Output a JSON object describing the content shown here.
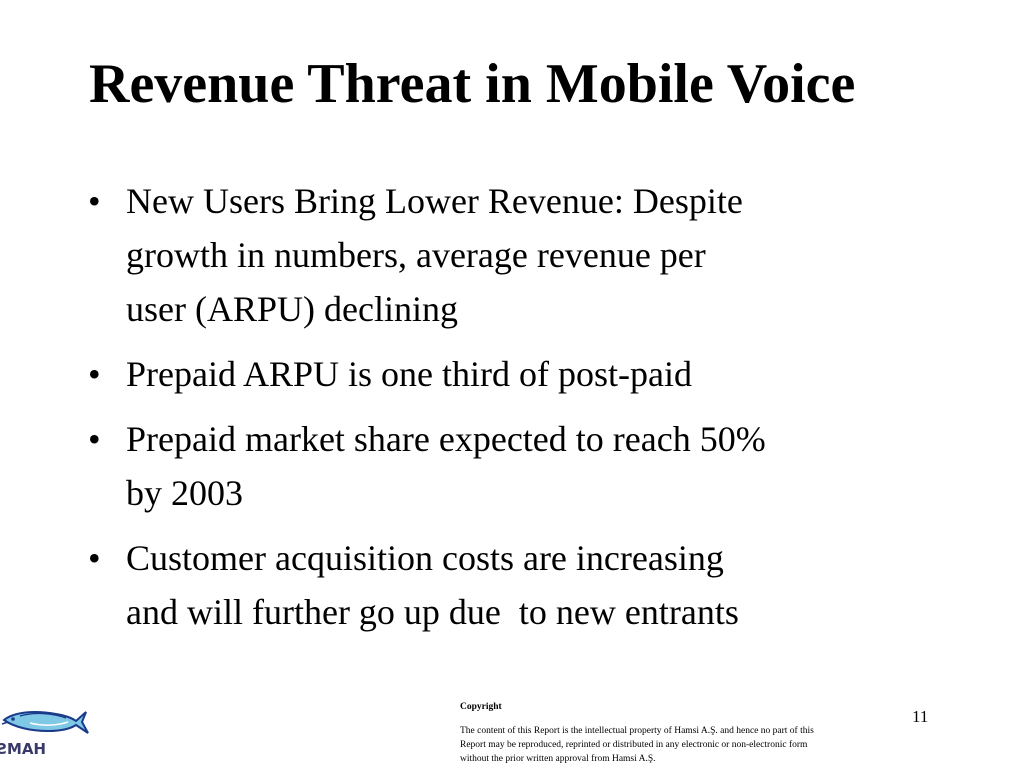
{
  "slide": {
    "title": "Revenue Threat in Mobile Voice",
    "bullets": [
      {
        "lines": [
          "New Users Bring Lower Revenue: Despite",
          "growth in numbers, average revenue per",
          "user (ARPU) declining"
        ]
      },
      {
        "lines": [
          "Prepaid ARPU is one third of post-paid"
        ]
      },
      {
        "lines": [
          "Prepaid market share expected to reach 50%",
          "by 2003"
        ]
      },
      {
        "lines": [
          "Customer acquisition costs are increasing",
          "and will further go up due  to new entrants"
        ]
      }
    ],
    "bullet_symbol": "•",
    "page_number": "11"
  },
  "footer": {
    "logo": {
      "icon": "fish-logo-icon",
      "text": "HAMSI",
      "colors": {
        "fish_body": "#7fc8e6",
        "fish_outline": "#1a3a8a",
        "text": "#3a3a6a"
      }
    },
    "copyright": {
      "title": "Copyright",
      "lines": [
        "The content of this Report is the intellectual property of Hamsi A.Ş. and hence no part of this",
        "Report may be reproduced, reprinted or distributed in any electronic or non-electronic form",
        "without the prior written approval from Hamsi A.Ş."
      ]
    }
  }
}
